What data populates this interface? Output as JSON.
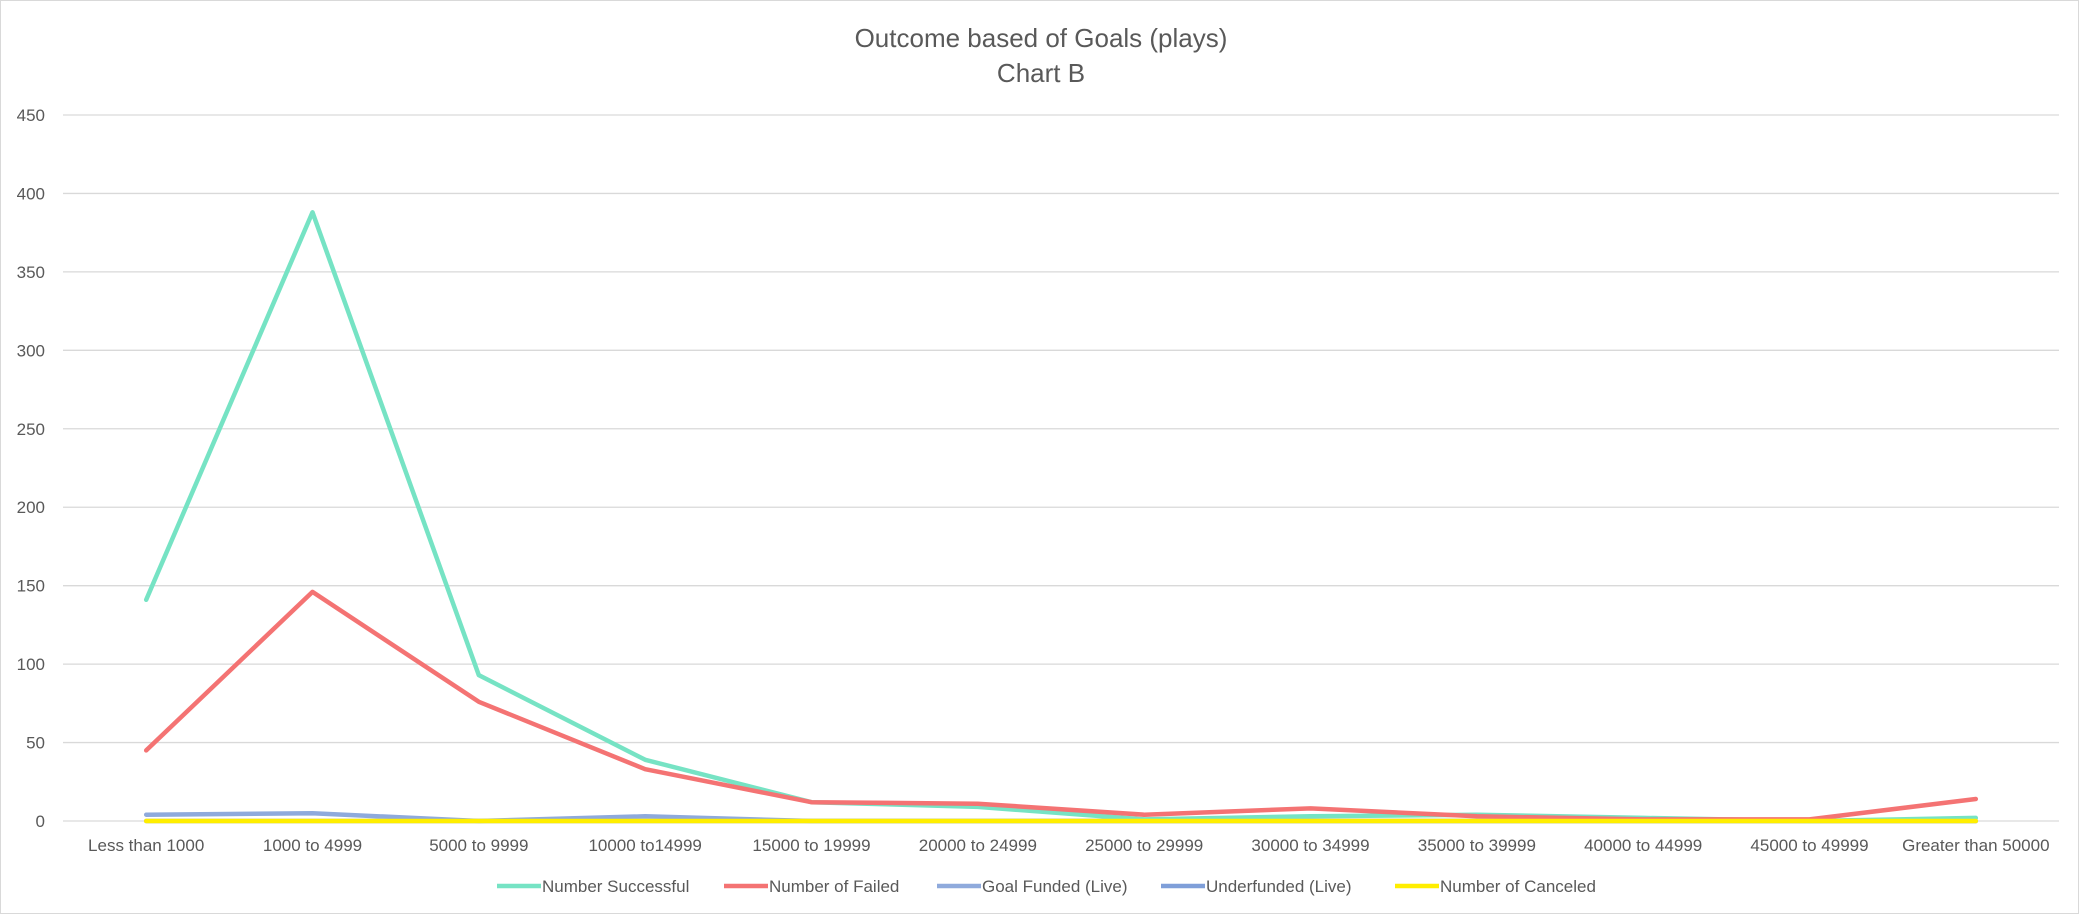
{
  "chart_data": {
    "type": "line",
    "title": "Outcome based of Goals (plays)",
    "subtitle": "Chart B",
    "xlabel": "",
    "ylabel": "",
    "ylim": [
      0,
      450
    ],
    "yticks": [
      "0",
      "50",
      "100",
      "150",
      "200",
      "250",
      "300",
      "350",
      "400",
      "450"
    ],
    "grid": true,
    "legend_position": "bottom",
    "categories": [
      "Less than 1000",
      "1000 to 4999",
      "5000 to 9999",
      "10000 to14999",
      "15000 to 19999",
      "20000 to 24999",
      "25000 to 29999",
      "30000 to 34999",
      "35000 to 39999",
      "40000 to 44999",
      "45000 to 49999",
      "Greater than 50000"
    ],
    "series": [
      {
        "name": "Number Successful",
        "color": "#76e3c4",
        "values": [
          141,
          388,
          93,
          39,
          12,
          9,
          1,
          3,
          4,
          2,
          0,
          2
        ]
      },
      {
        "name": "Number of Failed",
        "color": "#f47373",
        "values": [
          45,
          146,
          76,
          33,
          12,
          11,
          4,
          8,
          3,
          1,
          1,
          14
        ]
      },
      {
        "name": "Goal Funded (Live)",
        "color": "#8faadc",
        "values": [
          4,
          5,
          0,
          3,
          0,
          0,
          0,
          0,
          0,
          0,
          0,
          0
        ]
      },
      {
        "name": "Underfunded (Live)",
        "color": "#7f9fd9",
        "values": [
          0,
          0,
          0,
          0,
          0,
          0,
          0,
          0,
          0,
          0,
          0,
          0
        ]
      },
      {
        "name": "Number of Canceled",
        "color": "#ffee00",
        "values": [
          0,
          0,
          0,
          0,
          0,
          0,
          0,
          0,
          0,
          0,
          0,
          0
        ]
      }
    ]
  }
}
